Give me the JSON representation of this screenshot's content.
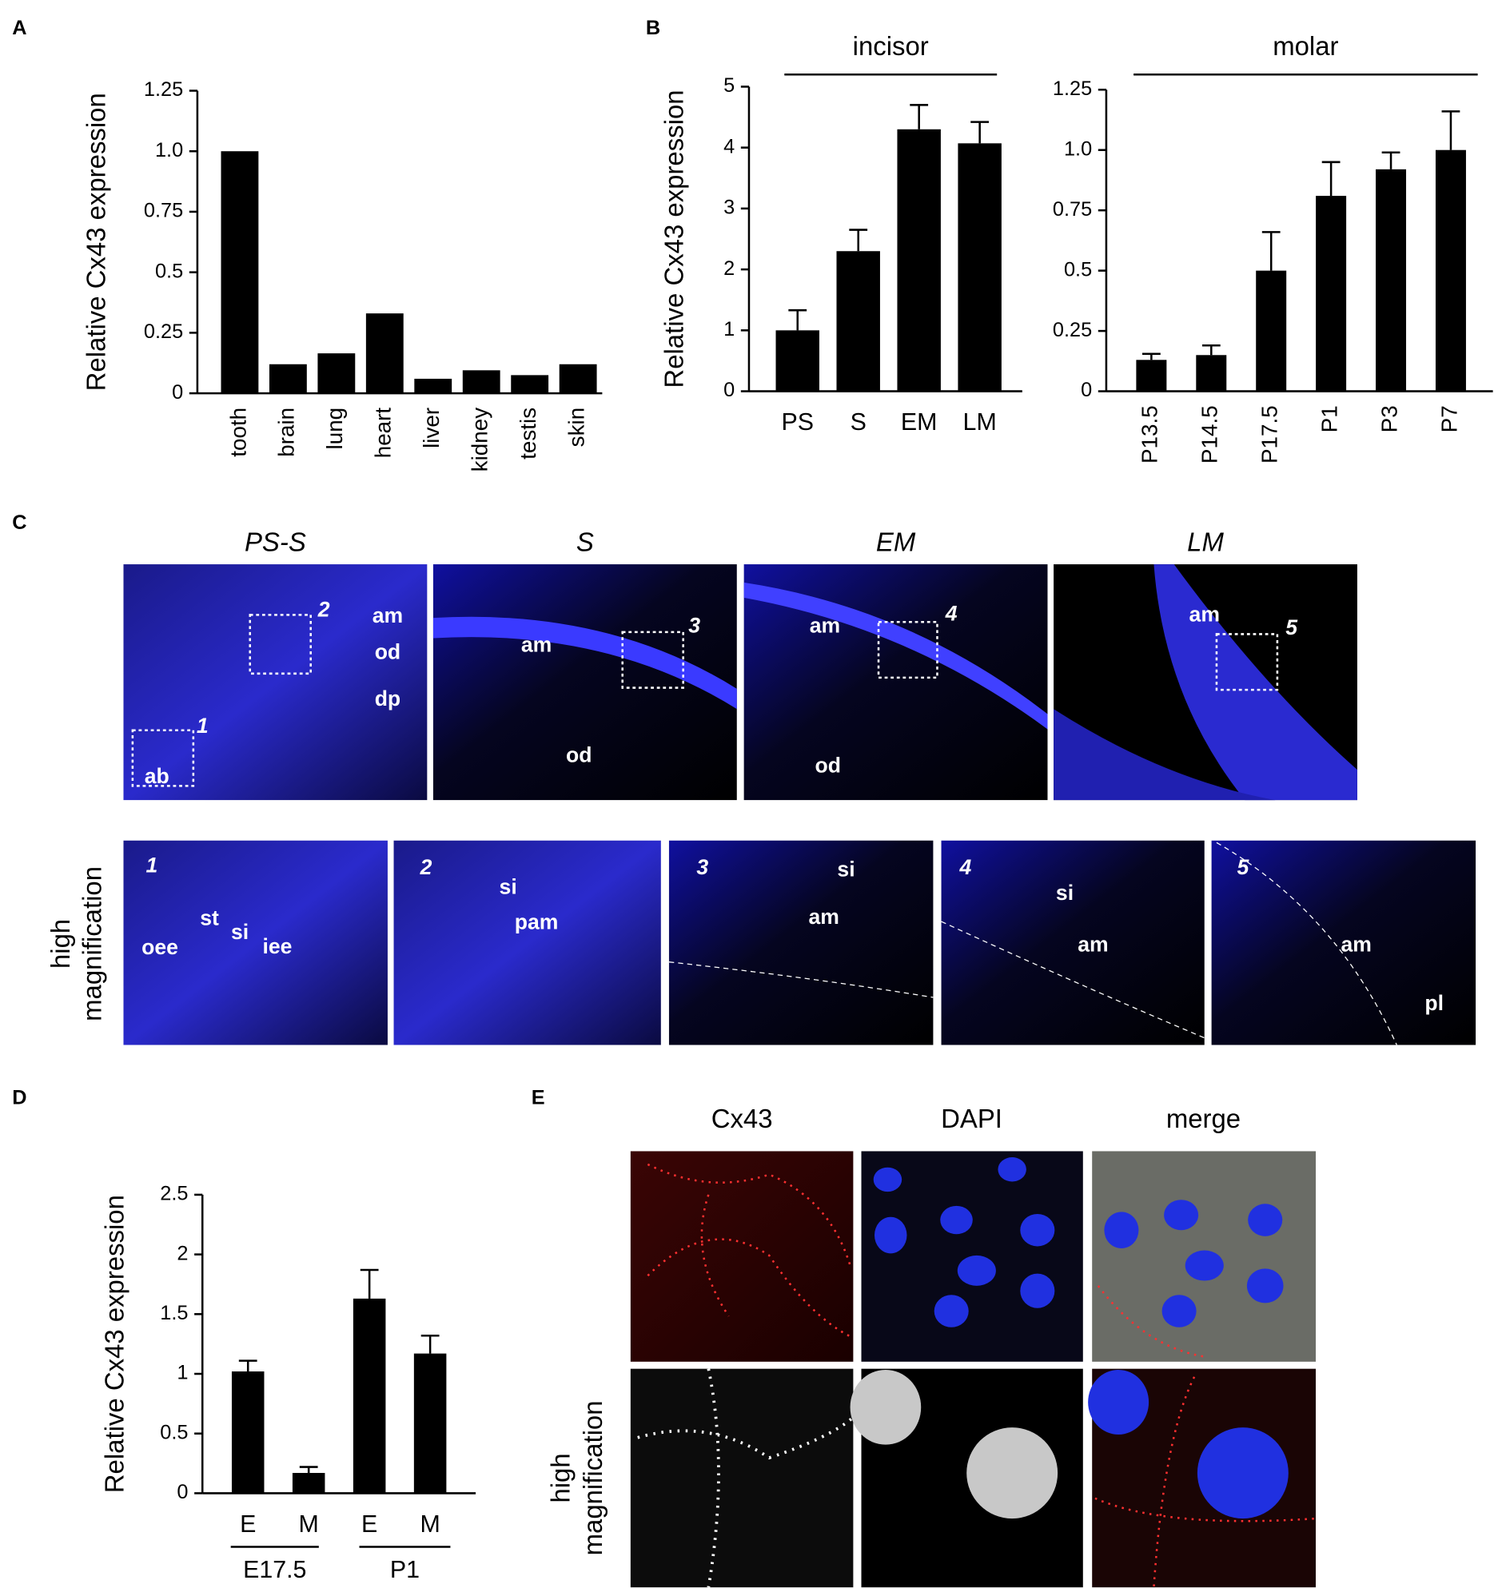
{
  "panel_labels": [
    "A",
    "B",
    "C",
    "D",
    "E"
  ],
  "chart_data": [
    {
      "type": "bar",
      "y_label": "Relative Cx43 expression",
      "categories": [
        "tooth",
        "brain",
        "lung",
        "heart",
        "liver",
        "kidney",
        "testis",
        "skin"
      ],
      "values": [
        1.0,
        0.12,
        0.165,
        0.33,
        0.06,
        0.095,
        0.075,
        0.12
      ],
      "color": "#000000",
      "ylim": [
        0,
        1.25
      ],
      "yticks": [
        0,
        0.25,
        0.5,
        0.75,
        {
          "value": 1,
          "label": "1.0"
        },
        1.25
      ]
    },
    {
      "type": "bar",
      "title": "incisor",
      "y_label": "Relative Cx43 expression",
      "categories": [
        "PS",
        "S",
        "EM",
        "LM"
      ],
      "values": [
        1.0,
        2.3,
        4.3,
        4.07
      ],
      "errors": [
        0.33,
        0.35,
        0.4,
        0.35
      ],
      "color": "#000000",
      "ylim": [
        0,
        5
      ],
      "yticks": [
        0,
        1,
        2,
        3,
        4,
        5
      ]
    },
    {
      "type": "bar",
      "title": "molar",
      "categories": [
        "P13.5",
        "P14.5",
        "P17.5",
        "P1",
        "P3",
        "P7"
      ],
      "values": [
        0.13,
        0.15,
        0.5,
        0.81,
        0.92,
        1.0
      ],
      "errors": [
        0.025,
        0.04,
        0.16,
        0.14,
        0.07,
        0.16
      ],
      "color": "#000000",
      "ylim": [
        0,
        1.25
      ],
      "yticks": [
        0,
        0.25,
        0.5,
        0.75,
        {
          "value": 1,
          "label": "1.0"
        },
        1.25
      ]
    },
    {
      "type": "bar",
      "y_label": "Relative Cx43 expression",
      "categories": [
        "E",
        "M",
        "E",
        "M"
      ],
      "groups": [
        "E17.5",
        "P1"
      ],
      "values": [
        1.02,
        0.17,
        1.63,
        1.17
      ],
      "errors": [
        0.09,
        0.05,
        0.24,
        0.15
      ],
      "color": "#000000",
      "ylim": [
        0,
        2.5
      ],
      "yticks": [
        0,
        0.5,
        1,
        1.5,
        2,
        2.5
      ]
    }
  ],
  "panel_c": {
    "titles": [
      "PS-S",
      "S",
      "EM",
      "LM"
    ],
    "row_label": [
      "high",
      "magnification"
    ],
    "overview_labels": [
      [
        "am",
        "od",
        "dp",
        "ab",
        "1",
        "2"
      ],
      [
        "am",
        "od",
        "3"
      ],
      [
        "am",
        "od",
        "4"
      ],
      [
        "am",
        "5"
      ]
    ],
    "detail_labels": [
      [
        "1",
        "oee",
        "st",
        "si",
        "iee"
      ],
      [
        "2",
        "si",
        "pam"
      ],
      [
        "3",
        "si",
        "am"
      ],
      [
        "4",
        "si",
        "am"
      ],
      [
        "5",
        "am",
        "pl"
      ]
    ]
  },
  "panel_e": {
    "columns": [
      "Cx43",
      "DAPI",
      "merge"
    ],
    "row_label": [
      "high",
      "magnification"
    ]
  }
}
